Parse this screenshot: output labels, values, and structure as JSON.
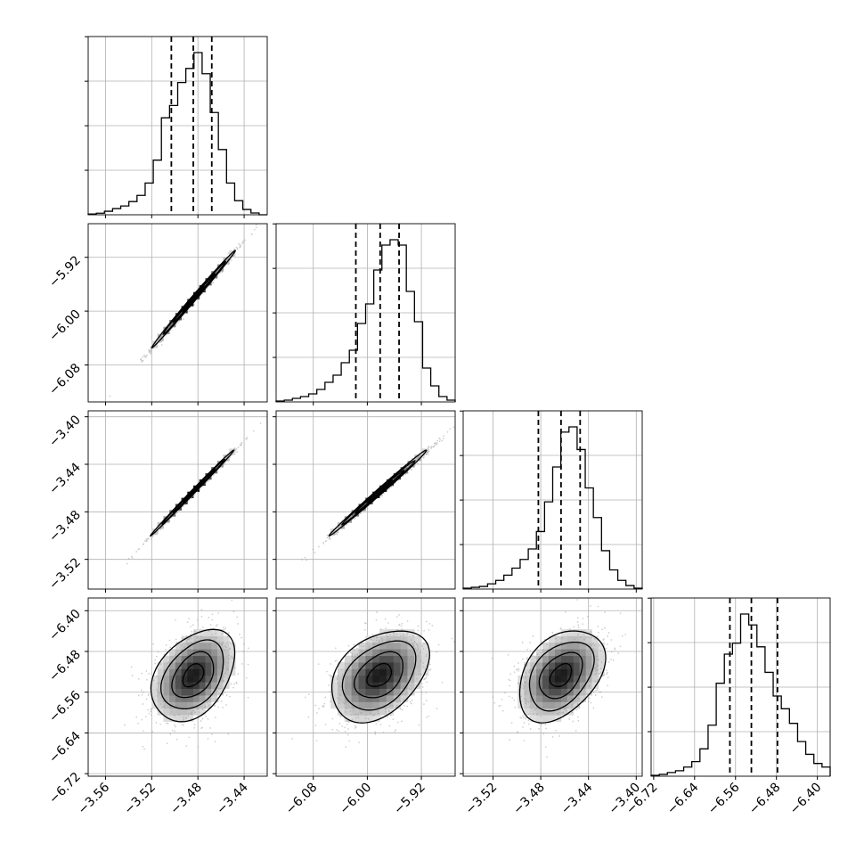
{
  "chart_data": {
    "type": "corner",
    "parameters": [
      {
        "range": [
          -3.575,
          -3.42
        ],
        "ticks": [
          -3.56,
          -3.52,
          -3.48,
          -3.44
        ],
        "tick_labels": [
          "−3.56",
          "−3.52",
          "−3.48",
          "−3.44"
        ],
        "quantiles": [
          -3.503,
          -3.484,
          -3.468
        ],
        "hist": [
          0.4,
          0.9,
          2,
          3.5,
          5,
          7.5,
          11,
          18,
          31,
          55,
          62,
          75,
          83,
          92,
          80,
          58,
          37,
          18,
          8,
          3,
          1,
          0
        ]
      },
      {
        "range": [
          -6.135,
          -5.87
        ],
        "ticks": [
          -6.08,
          -6.0,
          -5.92
        ],
        "tick_labels": [
          "−6.08",
          "−6.00",
          "−5.92"
        ],
        "quantiles": [
          -6.017,
          -5.981,
          -5.953
        ],
        "hist": [
          0.5,
          1,
          2,
          3,
          4.5,
          7,
          11,
          15,
          22,
          29,
          44,
          55,
          74,
          88,
          91,
          88,
          62,
          45,
          19,
          9,
          3,
          1
        ]
      },
      {
        "range": [
          -3.545,
          -3.395
        ],
        "ticks": [
          -3.52,
          -3.48,
          -3.44,
          -3.4
        ],
        "tick_labels": [
          "−3.52",
          "−3.48",
          "−3.44",
          "−3.40"
        ],
        "quantiles": [
          -3.482,
          -3.463,
          -3.447
        ],
        "hist": [
          0.5,
          1,
          1.5,
          3,
          5,
          8,
          12,
          17,
          23,
          33,
          50,
          70,
          90,
          93,
          80,
          58,
          41,
          22,
          11,
          5,
          2,
          0.5
        ]
      },
      {
        "range": [
          -6.725,
          -6.375
        ],
        "ticks": [
          -6.72,
          -6.64,
          -6.56,
          -6.48,
          -6.4
        ],
        "tick_labels": [
          "−6.72",
          "−6.64",
          "−6.56",
          "−6.48",
          "−6.40"
        ],
        "quantiles": [
          -6.571,
          -6.529,
          -6.478
        ],
        "hist": [
          0.5,
          1,
          2,
          3,
          5,
          8,
          15,
          28,
          51,
          67,
          73,
          89,
          83,
          71,
          57,
          44,
          37,
          29,
          19,
          12,
          7,
          5
        ]
      }
    ],
    "pairs": [
      {
        "row": 1,
        "col": 0,
        "center": [
          -3.484,
          -5.982
        ],
        "sigma": [
          0.018,
          0.036
        ],
        "rho": 0.997
      },
      {
        "row": 2,
        "col": 0,
        "center": [
          -3.484,
          -3.463
        ],
        "sigma": [
          0.018,
          0.018
        ],
        "rho": 0.998
      },
      {
        "row": 2,
        "col": 1,
        "center": [
          -5.982,
          -3.463
        ],
        "sigma": [
          0.036,
          0.018
        ],
        "rho": 0.996
      },
      {
        "row": 3,
        "col": 0,
        "center": [
          -3.484,
          -6.527
        ],
        "sigma": [
          0.018,
          0.045
        ],
        "rho": 0.38
      },
      {
        "row": 3,
        "col": 1,
        "center": [
          -5.982,
          -6.527
        ],
        "sigma": [
          0.036,
          0.045
        ],
        "rho": 0.38
      },
      {
        "row": 3,
        "col": 2,
        "center": [
          -3.463,
          -6.527
        ],
        "sigma": [
          0.018,
          0.045
        ],
        "rho": 0.38
      }
    ],
    "grid": true,
    "contour_levels_sigma": [
      0.5,
      1.0,
      1.5,
      2.0
    ],
    "colors": {
      "line": "#000000",
      "grid": "#b0b0b0",
      "points": "#9a9a9a"
    }
  }
}
